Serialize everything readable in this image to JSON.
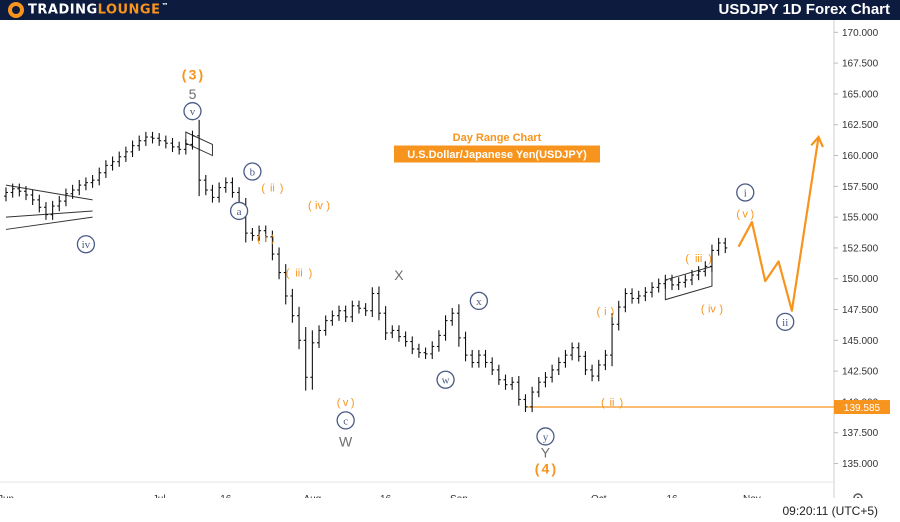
{
  "header": {
    "logo_text_a": "TRADING",
    "logo_text_b": "LOUNGE",
    "logo_tm": "™",
    "title": "USDJPY 1D Forex Chart"
  },
  "footer": {
    "time": "09:20:11 (UTC+5)"
  },
  "colors": {
    "accent": "#f7941d",
    "wave_blue": "#4a5a85",
    "candle": "#111111",
    "header_bg": "#0d1b3e"
  },
  "chart_data": {
    "type": "ohlc",
    "title": "Day Range Chart",
    "subtitle": "U.S.Dollar/Japanese Yen(USDJPY)",
    "ylim": [
      133.5,
      171.0
    ],
    "y_ticks": [
      "170.000",
      "167.500",
      "165.000",
      "162.500",
      "160.000",
      "157.500",
      "155.000",
      "152.500",
      "150.000",
      "147.500",
      "145.000",
      "142.500",
      "140.000",
      "137.500",
      "135.000"
    ],
    "x_labels": [
      {
        "label": "Jun",
        "x": 0
      },
      {
        "label": "Jul",
        "x": 23
      },
      {
        "label": "16",
        "x": 33
      },
      {
        "label": "Aug",
        "x": 46
      },
      {
        "label": "16",
        "x": 57
      },
      {
        "label": "Sep",
        "x": 68
      },
      {
        "label": "Oct",
        "x": 89
      },
      {
        "label": "16",
        "x": 100
      },
      {
        "label": "Nov",
        "x": 112
      }
    ],
    "last_price": "139.585",
    "support_level": 139.585,
    "support_from_x": 78,
    "closes": [
      157.0,
      157.3,
      157.1,
      156.8,
      156.4,
      155.8,
      155.2,
      155.9,
      156.3,
      156.9,
      157.2,
      157.6,
      157.8,
      158.0,
      158.6,
      159.2,
      159.5,
      159.9,
      160.3,
      160.8,
      161.2,
      161.5,
      161.4,
      161.2,
      161.0,
      160.7,
      160.5,
      160.9,
      161.6,
      158.0,
      157.2,
      156.6,
      157.4,
      157.8,
      157.0,
      155.8,
      153.7,
      153.5,
      153.9,
      153.4,
      152.0,
      150.5,
      148.6,
      147.0,
      145.0,
      142.0,
      144.8,
      145.8,
      146.6,
      147.0,
      147.4,
      146.9,
      147.8,
      147.6,
      147.4,
      148.8,
      147.2,
      145.6,
      145.8,
      145.3,
      144.9,
      144.3,
      144.0,
      143.9,
      144.5,
      145.4,
      146.6,
      147.2,
      145.2,
      143.8,
      143.2,
      143.8,
      143.2,
      142.6,
      141.8,
      141.4,
      141.6,
      140.2,
      139.6,
      140.8,
      141.6,
      142.0,
      142.6,
      143.2,
      143.8,
      144.4,
      143.7,
      142.6,
      142.1,
      143.0,
      143.8,
      146.3,
      147.7,
      148.8,
      148.4,
      148.6,
      148.9,
      149.3,
      149.6,
      149.9,
      149.5,
      149.7,
      149.9,
      150.3,
      150.6,
      151.0,
      152.3,
      152.9,
      152.5
    ],
    "projection": [
      [
        110,
        152.6
      ],
      [
        112,
        154.6
      ],
      [
        114,
        149.8
      ],
      [
        116,
        151.4
      ],
      [
        118,
        147.4
      ],
      [
        122,
        161.5
      ]
    ],
    "projection_arrow_tip": [
      122,
      161.5
    ],
    "wedge_left": {
      "upper": [
        [
          0,
          157.6
        ],
        [
          13,
          156.4
        ]
      ],
      "lower": [
        [
          0,
          155.0
        ],
        [
          13,
          155.5
        ]
      ],
      "extension": [
        [
          0,
          154.0
        ],
        [
          13,
          155.0
        ]
      ]
    },
    "annotations": [
      {
        "text": "3",
        "x": 28,
        "y": 166.5,
        "style": "orange-paren-large"
      },
      {
        "text": "5",
        "x": 28,
        "y": 165.0,
        "style": "gray-text"
      },
      {
        "text": "v",
        "x": 28,
        "y": 163.6,
        "style": "blue-circle"
      },
      {
        "text": "b",
        "x": 37,
        "y": 158.7,
        "style": "blue-circle"
      },
      {
        "text": "ii",
        "x": 40,
        "y": 157.4,
        "style": "orange-paren"
      },
      {
        "text": "a",
        "x": 35,
        "y": 155.5,
        "style": "blue-circle"
      },
      {
        "text": "iv",
        "x": 47,
        "y": 156.0,
        "style": "orange-paren"
      },
      {
        "text": "i",
        "x": 39,
        "y": 153.3,
        "style": "orange-paren"
      },
      {
        "text": "iii",
        "x": 44,
        "y": 150.5,
        "style": "orange-paren"
      },
      {
        "text": "iv",
        "x": 12,
        "y": 152.8,
        "style": "blue-circle"
      },
      {
        "text": "X",
        "x": 59,
        "y": 150.3,
        "style": "gray-text"
      },
      {
        "text": "x",
        "x": 71,
        "y": 148.2,
        "style": "blue-circle"
      },
      {
        "text": "w",
        "x": 66,
        "y": 141.8,
        "style": "blue-circle"
      },
      {
        "text": "v",
        "x": 51,
        "y": 140.0,
        "style": "orange-paren"
      },
      {
        "text": "c",
        "x": 51,
        "y": 138.5,
        "style": "blue-circle"
      },
      {
        "text": "W",
        "x": 51,
        "y": 136.8,
        "style": "gray-text"
      },
      {
        "text": "y",
        "x": 81,
        "y": 137.2,
        "style": "blue-circle"
      },
      {
        "text": "Y",
        "x": 81,
        "y": 135.9,
        "style": "gray-text"
      },
      {
        "text": "4",
        "x": 81,
        "y": 134.5,
        "style": "orange-paren-large"
      },
      {
        "text": "i",
        "x": 90,
        "y": 147.4,
        "style": "orange-paren"
      },
      {
        "text": "ii",
        "x": 91,
        "y": 140.0,
        "style": "orange-paren"
      },
      {
        "text": "iii",
        "x": 104,
        "y": 151.7,
        "style": "orange-paren"
      },
      {
        "text": "iv",
        "x": 106,
        "y": 147.6,
        "style": "orange-paren"
      },
      {
        "text": "v",
        "x": 111,
        "y": 155.3,
        "style": "orange-paren"
      },
      {
        "text": "i",
        "x": 111,
        "y": 157.0,
        "style": "blue-circle"
      },
      {
        "text": "ii",
        "x": 117,
        "y": 146.5,
        "style": "blue-circle"
      }
    ],
    "flag_boxes": [
      {
        "x0": 27,
        "x1": 31,
        "top_start": 161.9,
        "top_end": 160.9,
        "bot_start": 161.0,
        "bot_end": 160.0
      },
      {
        "x0": 99,
        "x1": 106,
        "top_start": 149.9,
        "top_end": 151.0,
        "bot_start": 148.3,
        "bot_end": 149.4
      }
    ]
  }
}
